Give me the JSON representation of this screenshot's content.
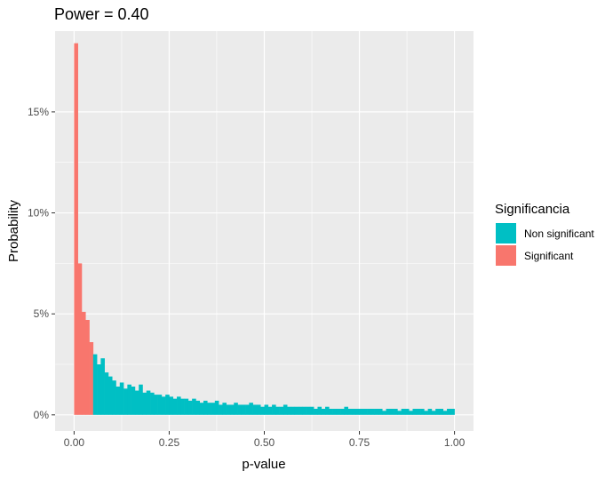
{
  "chart_data": {
    "type": "bar",
    "title": "Power = 0.40",
    "xlabel": "p-value",
    "ylabel": "Probability",
    "xlim": [
      -0.05,
      1.05
    ],
    "ylim": [
      -0.8,
      19.0
    ],
    "x_ticks": [
      {
        "value": 0.0,
        "label": "0.00"
      },
      {
        "value": 0.25,
        "label": "0.25"
      },
      {
        "value": 0.5,
        "label": "0.50"
      },
      {
        "value": 0.75,
        "label": "0.75"
      },
      {
        "value": 1.0,
        "label": "1.00"
      }
    ],
    "y_ticks": [
      {
        "value": 0,
        "label": "0%"
      },
      {
        "value": 5,
        "label": "5%"
      },
      {
        "value": 10,
        "label": "10%"
      },
      {
        "value": 15,
        "label": "15%"
      }
    ],
    "bin_width": 0.01,
    "bin_starts": [
      0.0,
      0.01,
      0.02,
      0.03,
      0.04,
      0.05,
      0.06,
      0.07,
      0.08,
      0.09,
      0.1,
      0.11,
      0.12,
      0.13,
      0.14,
      0.15,
      0.16,
      0.17,
      0.18,
      0.19,
      0.2,
      0.21,
      0.22,
      0.23,
      0.24,
      0.25,
      0.26,
      0.27,
      0.28,
      0.29,
      0.3,
      0.31,
      0.32,
      0.33,
      0.34,
      0.35,
      0.36,
      0.37,
      0.38,
      0.39,
      0.4,
      0.41,
      0.42,
      0.43,
      0.44,
      0.45,
      0.46,
      0.47,
      0.48,
      0.49,
      0.5,
      0.51,
      0.52,
      0.53,
      0.54,
      0.55,
      0.56,
      0.57,
      0.58,
      0.59,
      0.6,
      0.61,
      0.62,
      0.63,
      0.64,
      0.65,
      0.66,
      0.67,
      0.68,
      0.69,
      0.7,
      0.71,
      0.72,
      0.73,
      0.74,
      0.75,
      0.76,
      0.77,
      0.78,
      0.79,
      0.8,
      0.81,
      0.82,
      0.83,
      0.84,
      0.85,
      0.86,
      0.87,
      0.88,
      0.89,
      0.9,
      0.91,
      0.92,
      0.93,
      0.94,
      0.95,
      0.96,
      0.97,
      0.98,
      0.99
    ],
    "series": [
      {
        "name": "Significant",
        "color": "#F8766D",
        "start_index": 0,
        "values": [
          18.4,
          7.5,
          5.1,
          4.7,
          3.6
        ]
      },
      {
        "name": "Non significant",
        "color": "#00BFC4",
        "start_index": 5,
        "values": [
          3.0,
          2.5,
          2.8,
          2.1,
          1.9,
          1.7,
          1.4,
          1.6,
          1.3,
          1.5,
          1.4,
          1.2,
          1.5,
          1.1,
          1.2,
          1.1,
          1.0,
          1.0,
          0.9,
          1.0,
          0.9,
          0.8,
          0.9,
          0.8,
          0.8,
          0.7,
          0.8,
          0.7,
          0.6,
          0.7,
          0.6,
          0.6,
          0.7,
          0.5,
          0.6,
          0.5,
          0.5,
          0.6,
          0.5,
          0.5,
          0.5,
          0.6,
          0.5,
          0.5,
          0.4,
          0.5,
          0.4,
          0.5,
          0.4,
          0.4,
          0.5,
          0.4,
          0.4,
          0.4,
          0.4,
          0.4,
          0.4,
          0.4,
          0.3,
          0.4,
          0.3,
          0.4,
          0.3,
          0.3,
          0.3,
          0.3,
          0.4,
          0.3,
          0.3,
          0.3,
          0.3,
          0.3,
          0.3,
          0.3,
          0.3,
          0.3,
          0.2,
          0.3,
          0.3,
          0.3,
          0.2,
          0.3,
          0.3,
          0.2,
          0.3,
          0.3,
          0.3,
          0.2,
          0.3,
          0.2,
          0.3,
          0.3,
          0.2,
          0.3,
          0.3
        ]
      }
    ],
    "legend": {
      "title": "Significancia",
      "position": "right",
      "entries": [
        {
          "label": "Non significant",
          "color": "#00BFC4"
        },
        {
          "label": "Significant",
          "color": "#F8766D"
        }
      ]
    },
    "grid": true,
    "panel_background": "#EBEBEB",
    "grid_color": "#FFFFFF"
  }
}
